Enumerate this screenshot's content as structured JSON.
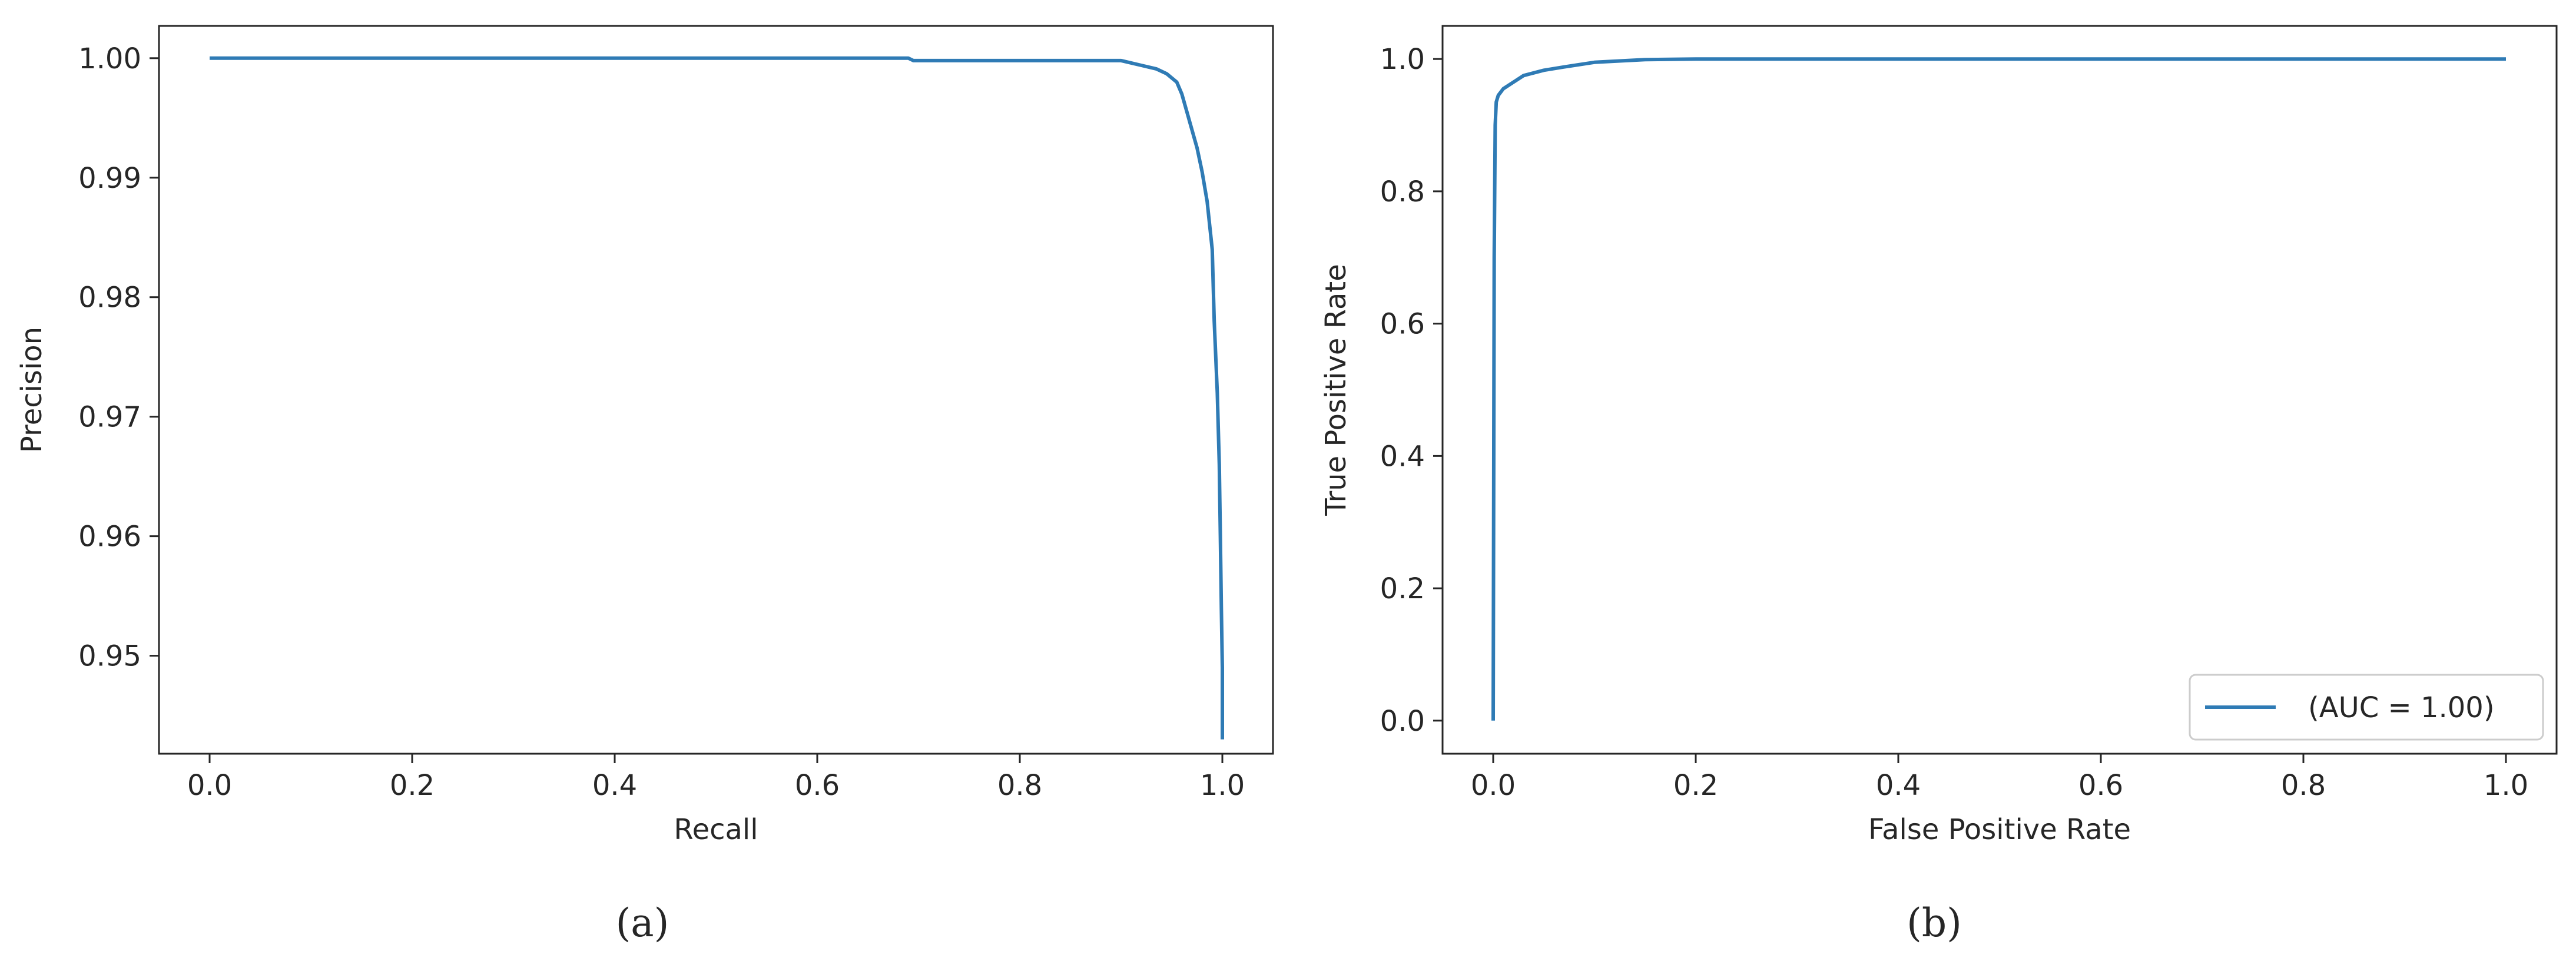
{
  "chart_data": [
    {
      "id": "a",
      "type": "line",
      "title": "",
      "xlabel": "Recall",
      "ylabel": "Precision",
      "xlim": [
        -0.05,
        1.05
      ],
      "ylim": [
        0.9418,
        1.0027
      ],
      "xticks": [
        0.0,
        0.2,
        0.4,
        0.6,
        0.8,
        1.0
      ],
      "xtick_labels": [
        "0.0",
        "0.2",
        "0.4",
        "0.6",
        "0.8",
        "1.0"
      ],
      "yticks": [
        0.95,
        0.96,
        0.97,
        0.98,
        0.99,
        1.0
      ],
      "ytick_labels": [
        "0.95",
        "0.96",
        "0.97",
        "0.98",
        "0.99",
        "1.00"
      ],
      "grid": false,
      "legend": null,
      "line_color": "#2f7bb5",
      "caption": "(a)",
      "series": [
        {
          "name": "",
          "x": [
            0.0,
            0.69,
            0.695,
            0.9,
            0.92,
            0.935,
            0.945,
            0.955,
            0.96,
            0.965,
            0.97,
            0.975,
            0.98,
            0.985,
            0.99,
            0.992,
            0.995,
            0.997,
            0.998,
            0.999,
            1.0,
            1.0
          ],
          "y": [
            1.0,
            1.0,
            0.9998,
            0.9998,
            0.9994,
            0.9991,
            0.9987,
            0.998,
            0.997,
            0.9955,
            0.994,
            0.9925,
            0.9905,
            0.988,
            0.984,
            0.978,
            0.972,
            0.966,
            0.96,
            0.954,
            0.949,
            0.943
          ]
        }
      ]
    },
    {
      "id": "b",
      "type": "line",
      "title": "",
      "xlabel": "False Positive Rate",
      "ylabel": "True Positive Rate",
      "xlim": [
        -0.05,
        1.05
      ],
      "ylim": [
        -0.05,
        1.05
      ],
      "xticks": [
        0.0,
        0.2,
        0.4,
        0.6,
        0.8,
        1.0
      ],
      "xtick_labels": [
        "0.0",
        "0.2",
        "0.4",
        "0.6",
        "0.8",
        "1.0"
      ],
      "yticks": [
        0.0,
        0.2,
        0.4,
        0.6,
        0.8,
        1.0
      ],
      "ytick_labels": [
        "0.0",
        "0.2",
        "0.4",
        "0.6",
        "0.8",
        "1.0"
      ],
      "grid": false,
      "legend": "lower-right",
      "line_color": "#2f7bb5",
      "caption": "(b)",
      "series": [
        {
          "name": "(AUC = 1.00)",
          "x": [
            0.0,
            0.001,
            0.002,
            0.003,
            0.005,
            0.01,
            0.02,
            0.03,
            0.05,
            0.07,
            0.1,
            0.15,
            0.2,
            1.0
          ],
          "y": [
            0.0,
            0.7,
            0.9,
            0.935,
            0.945,
            0.955,
            0.965,
            0.975,
            0.983,
            0.988,
            0.995,
            0.999,
            1.0,
            1.0
          ]
        }
      ]
    }
  ]
}
